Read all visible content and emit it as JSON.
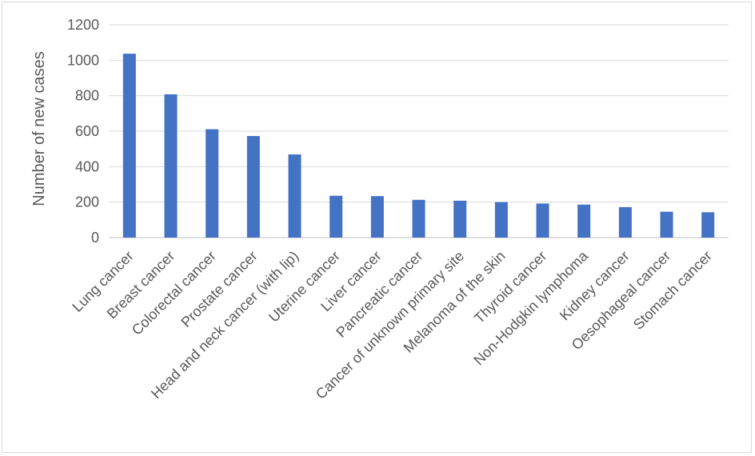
{
  "chart_data": {
    "type": "bar",
    "title": "",
    "xlabel": "",
    "ylabel": "Number of new cases",
    "ylim": [
      0,
      1200
    ],
    "yticks": [
      0,
      200,
      400,
      600,
      800,
      1000,
      1200
    ],
    "grid": true,
    "legend": "none",
    "bar_color": "#4472c4",
    "categories": [
      "Lung cancer",
      "Breast cancer",
      "Colorectal cancer",
      "Prostate cancer",
      "Head and neck cancer (with lip)",
      "Uterine cancer",
      "Liver cancer",
      "Pancreatic cancer",
      "Cancer of unknown primary site",
      "Melanoma of the skin",
      "Thyroid cancer",
      "Non-Hodgkin lymphoma",
      "Kidney cancer",
      "Oesophageal cancer",
      "Stomach cancer"
    ],
    "values": [
      1037,
      808,
      611,
      573,
      469,
      236,
      234,
      213,
      208,
      200,
      192,
      186,
      172,
      146,
      143
    ]
  }
}
